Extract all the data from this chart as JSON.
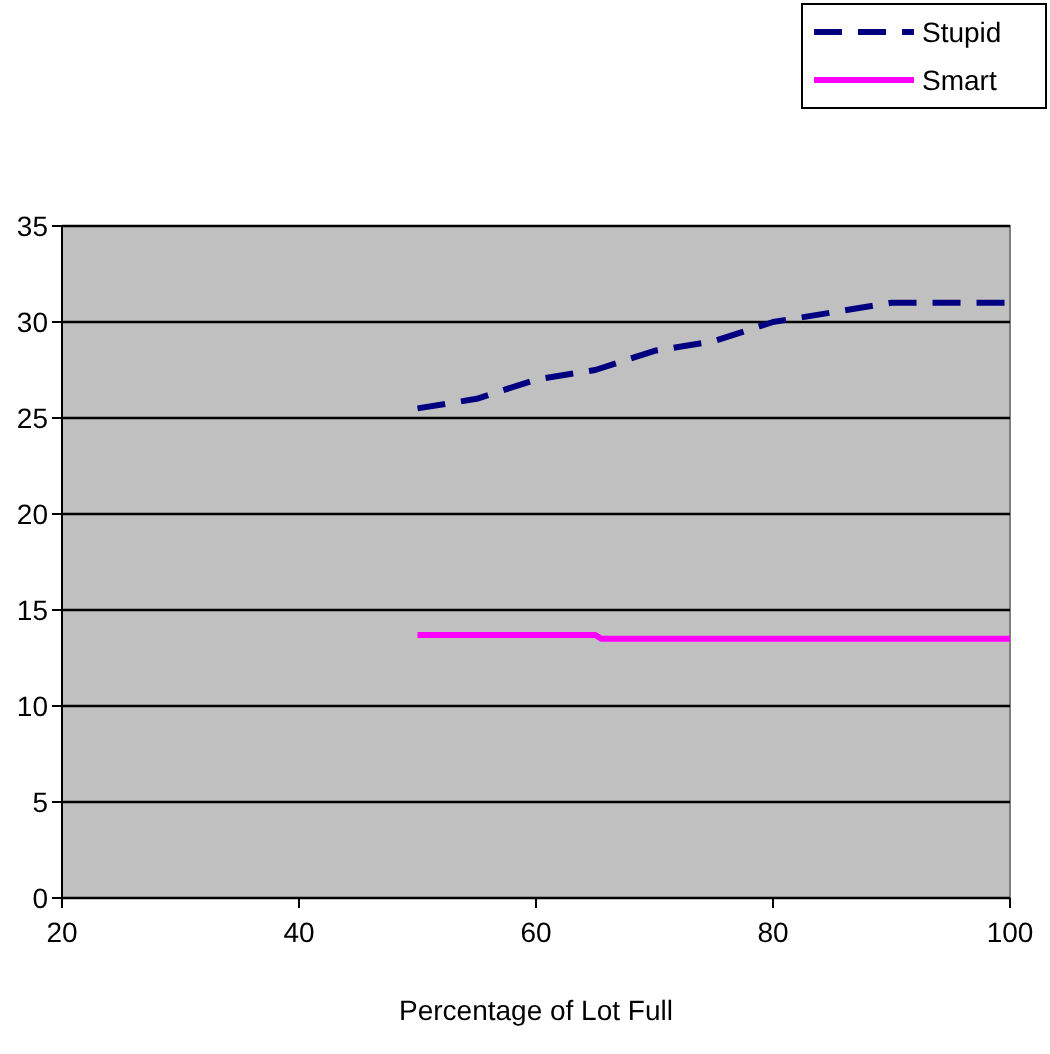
{
  "chart_data": {
    "type": "line",
    "xlabel": "Percentage of Lot Full",
    "xlim": [
      20,
      100
    ],
    "xticks": [
      20,
      40,
      60,
      80,
      100
    ],
    "ylim": [
      0,
      35
    ],
    "yticks": [
      0,
      5,
      10,
      15,
      20,
      25,
      30,
      35
    ],
    "grid": "y",
    "legend": "top right",
    "series": [
      {
        "name": "Stupid",
        "color": "#000080",
        "line_style": "dashed",
        "x": [
          50,
          55,
          60,
          65,
          70,
          75,
          80,
          85,
          90,
          95,
          100
        ],
        "values": [
          25.5,
          26,
          27,
          27.5,
          28.5,
          29,
          30,
          30.5,
          31,
          31,
          31
        ]
      },
      {
        "name": "Smart",
        "color": "#ff00ff",
        "line_style": "solid",
        "x": [
          50,
          65,
          65.5,
          100
        ],
        "values": [
          13.7,
          13.7,
          13.5,
          13.5
        ]
      }
    ]
  }
}
